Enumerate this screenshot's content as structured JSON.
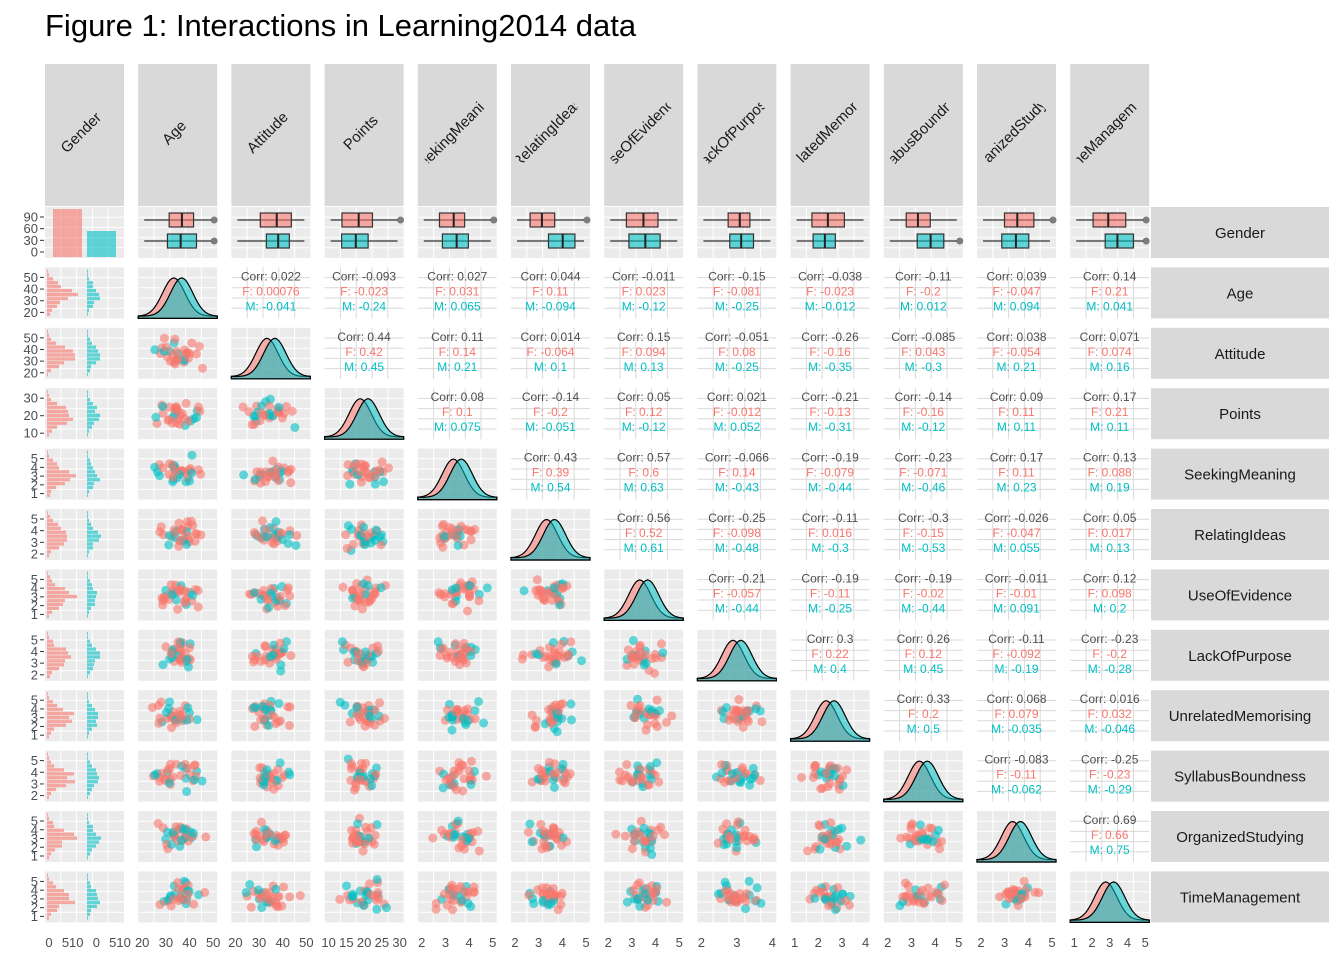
{
  "title": "Figure 1: Interactions in Learning2014 data",
  "variables": [
    "Gender",
    "Age",
    "Attitude",
    "Points",
    "SeekingMeaning",
    "RelatingIdeas",
    "UseOfEvidence",
    "LackOfPurpose",
    "UnrelatedMemorising",
    "SyllabusBoundness",
    "OrganizedStudying",
    "TimeManagement"
  ],
  "colors": {
    "female": "#F8766D",
    "male": "#00BFC4",
    "panel": "#EBEBEB",
    "grid": "#FFFFFF",
    "strip": "#D9D9D9",
    "label": "#4D4D4D",
    "corr_text": "#4D4D4D"
  },
  "y_ticks": [
    [
      "90",
      "60",
      "30",
      "0"
    ],
    [
      "50",
      "40",
      "30",
      "20"
    ],
    [
      "50",
      "40",
      "30",
      "20"
    ],
    [
      "30",
      "20",
      "10"
    ],
    [
      "5",
      "4",
      "3",
      "2",
      "1"
    ],
    [
      "5",
      "4",
      "3",
      "2"
    ],
    [
      "5",
      "4",
      "3",
      "2",
      "1"
    ],
    [
      "5",
      "4",
      "3",
      "2"
    ],
    [
      "5",
      "4",
      "3",
      "2",
      "1"
    ],
    [
      "5",
      "4",
      "3",
      "2"
    ],
    [
      "5",
      "4",
      "3",
      "2",
      "1"
    ],
    [
      "5",
      "4",
      "3",
      "2",
      "1"
    ]
  ],
  "x_ticks": [
    [
      "0",
      "510",
      "0",
      "510"
    ],
    [
      "20",
      "30",
      "40",
      "50"
    ],
    [
      "20",
      "30",
      "40",
      "50"
    ],
    [
      "10",
      "15",
      "20",
      "25",
      "30"
    ],
    [
      "2",
      "3",
      "4",
      "5"
    ],
    [
      "2",
      "3",
      "4",
      "5"
    ],
    [
      "2",
      "3",
      "4",
      "5"
    ],
    [
      "2",
      "3",
      "4"
    ],
    [
      "1",
      "2",
      "3",
      "4"
    ],
    [
      "2",
      "3",
      "4",
      "5"
    ],
    [
      "2",
      "3",
      "4",
      "5"
    ],
    [
      "1",
      "2",
      "3",
      "4",
      "5"
    ]
  ],
  "chart_data": {
    "type": "scatter",
    "title": "Figure 1: Interactions in Learning2014 data",
    "plot_kind": "generalized pairs plot (ggpairs), colored by Gender (F, M)",
    "groups": [
      "F",
      "M"
    ],
    "correlations": [
      {
        "row": "Age",
        "col": "Attitude",
        "corr": "0.022",
        "F": "0.00076",
        "M": "-0.041"
      },
      {
        "row": "Age",
        "col": "Points",
        "corr": "-0.093",
        "F": "-0.023",
        "M": "-0.24"
      },
      {
        "row": "Age",
        "col": "SeekingMeaning",
        "corr": "0.027",
        "F": "0.031",
        "M": "0.065"
      },
      {
        "row": "Age",
        "col": "RelatingIdeas",
        "corr": "0.044",
        "F": "0.11",
        "M": "-0.094"
      },
      {
        "row": "Age",
        "col": "UseOfEvidence",
        "corr": "-0.011",
        "F": "0.023",
        "M": "-0.12"
      },
      {
        "row": "Age",
        "col": "LackOfPurpose",
        "corr": "-0.15",
        "F": "-0.081",
        "M": "-0.25"
      },
      {
        "row": "Age",
        "col": "UnrelatedMemorising",
        "corr": "-0.038",
        "F": "-0.023",
        "M": "-0.012"
      },
      {
        "row": "Age",
        "col": "SyllabusBoundness",
        "corr": "-0.11",
        "F": "-0.2",
        "M": "0.012"
      },
      {
        "row": "Age",
        "col": "OrganizedStudying",
        "corr": "0.039",
        "F": "-0.047",
        "M": "0.094"
      },
      {
        "row": "Age",
        "col": "TimeManagement",
        "corr": "0.14",
        "F": "0.21",
        "M": "0.041"
      },
      {
        "row": "Attitude",
        "col": "Points",
        "corr": "0.44",
        "F": "0.42",
        "M": "0.45"
      },
      {
        "row": "Attitude",
        "col": "SeekingMeaning",
        "corr": "0.11",
        "F": "0.14",
        "M": "0.21"
      },
      {
        "row": "Attitude",
        "col": "RelatingIdeas",
        "corr": "0.014",
        "F": "-0.064",
        "M": "0.1"
      },
      {
        "row": "Attitude",
        "col": "UseOfEvidence",
        "corr": "0.15",
        "F": "0.094",
        "M": "0.13"
      },
      {
        "row": "Attitude",
        "col": "LackOfPurpose",
        "corr": "-0.051",
        "F": "0.08",
        "M": "-0.25"
      },
      {
        "row": "Attitude",
        "col": "UnrelatedMemorising",
        "corr": "-0.26",
        "F": "-0.16",
        "M": "-0.35"
      },
      {
        "row": "Attitude",
        "col": "SyllabusBoundness",
        "corr": "-0.085",
        "F": "0.043",
        "M": "-0.3"
      },
      {
        "row": "Attitude",
        "col": "OrganizedStudying",
        "corr": "0.038",
        "F": "-0.054",
        "M": "0.21"
      },
      {
        "row": "Attitude",
        "col": "TimeManagement",
        "corr": "0.071",
        "F": "0.074",
        "M": "0.16"
      },
      {
        "row": "Points",
        "col": "SeekingMeaning",
        "corr": "0.08",
        "F": "0.1",
        "M": "0.075"
      },
      {
        "row": "Points",
        "col": "RelatingIdeas",
        "corr": "-0.14",
        "F": "-0.2",
        "M": "-0.051"
      },
      {
        "row": "Points",
        "col": "UseOfEvidence",
        "corr": "0.05",
        "F": "0.12",
        "M": "-0.12"
      },
      {
        "row": "Points",
        "col": "LackOfPurpose",
        "corr": "0.021",
        "F": "-0.012",
        "M": "0.052"
      },
      {
        "row": "Points",
        "col": "UnrelatedMemorising",
        "corr": "-0.21",
        "F": "-0.13",
        "M": "-0.31"
      },
      {
        "row": "Points",
        "col": "SyllabusBoundness",
        "corr": "-0.14",
        "F": "-0.16",
        "M": "-0.12"
      },
      {
        "row": "Points",
        "col": "OrganizedStudying",
        "corr": "0.09",
        "F": "0.11",
        "M": "0.11"
      },
      {
        "row": "Points",
        "col": "TimeManagement",
        "corr": "0.17",
        "F": "0.21",
        "M": "0.11"
      },
      {
        "row": "SeekingMeaning",
        "col": "RelatingIdeas",
        "corr": "0.43",
        "F": "0.39",
        "M": "0.54"
      },
      {
        "row": "SeekingMeaning",
        "col": "UseOfEvidence",
        "corr": "0.57",
        "F": "0.6",
        "M": "0.63"
      },
      {
        "row": "SeekingMeaning",
        "col": "LackOfPurpose",
        "corr": "-0.066",
        "F": "0.14",
        "M": "-0.43"
      },
      {
        "row": "SeekingMeaning",
        "col": "UnrelatedMemorising",
        "corr": "-0.19",
        "F": "-0.079",
        "M": "-0.44"
      },
      {
        "row": "SeekingMeaning",
        "col": "SyllabusBoundness",
        "corr": "-0.23",
        "F": "-0.071",
        "M": "-0.46"
      },
      {
        "row": "SeekingMeaning",
        "col": "OrganizedStudying",
        "corr": "0.17",
        "F": "0.11",
        "M": "0.23"
      },
      {
        "row": "SeekingMeaning",
        "col": "TimeManagement",
        "corr": "0.13",
        "F": "0.088",
        "M": "0.19"
      },
      {
        "row": "RelatingIdeas",
        "col": "UseOfEvidence",
        "corr": "0.56",
        "F": "0.52",
        "M": "0.61"
      },
      {
        "row": "RelatingIdeas",
        "col": "LackOfPurpose",
        "corr": "-0.25",
        "F": "-0.098",
        "M": "-0.48"
      },
      {
        "row": "RelatingIdeas",
        "col": "UnrelatedMemorising",
        "corr": "-0.11",
        "F": "0.016",
        "M": "-0.3"
      },
      {
        "row": "RelatingIdeas",
        "col": "SyllabusBoundness",
        "corr": "-0.3",
        "F": "-0.15",
        "M": "-0.53"
      },
      {
        "row": "RelatingIdeas",
        "col": "OrganizedStudying",
        "corr": "-0.026",
        "F": "-0.047",
        "M": "0.055"
      },
      {
        "row": "RelatingIdeas",
        "col": "TimeManagement",
        "corr": "0.05",
        "F": "0.017",
        "M": "0.13"
      },
      {
        "row": "UseOfEvidence",
        "col": "LackOfPurpose",
        "corr": "-0.21",
        "F": "-0.057",
        "M": "-0.44"
      },
      {
        "row": "UseOfEvidence",
        "col": "UnrelatedMemorising",
        "corr": "-0.19",
        "F": "-0.11",
        "M": "-0.25"
      },
      {
        "row": "UseOfEvidence",
        "col": "SyllabusBoundness",
        "corr": "-0.19",
        "F": "-0.02",
        "M": "-0.44"
      },
      {
        "row": "UseOfEvidence",
        "col": "OrganizedStudying",
        "corr": "-0.011",
        "F": "-0.01",
        "M": "0.091"
      },
      {
        "row": "UseOfEvidence",
        "col": "TimeManagement",
        "corr": "0.12",
        "F": "0.098",
        "M": "0.2"
      },
      {
        "row": "LackOfPurpose",
        "col": "UnrelatedMemorising",
        "corr": "0.3",
        "F": "0.22",
        "M": "0.4"
      },
      {
        "row": "LackOfPurpose",
        "col": "SyllabusBoundness",
        "corr": "0.26",
        "F": "0.12",
        "M": "0.45"
      },
      {
        "row": "LackOfPurpose",
        "col": "OrganizedStudying",
        "corr": "-0.11",
        "F": "-0.092",
        "M": "-0.19"
      },
      {
        "row": "LackOfPurpose",
        "col": "TimeManagement",
        "corr": "-0.23",
        "F": "-0.2",
        "M": "-0.28"
      },
      {
        "row": "UnrelatedMemorising",
        "col": "SyllabusBoundness",
        "corr": "0.33",
        "F": "0.2",
        "M": "0.5"
      },
      {
        "row": "UnrelatedMemorising",
        "col": "OrganizedStudying",
        "corr": "0.068",
        "F": "0.079",
        "M": "-0.035"
      },
      {
        "row": "UnrelatedMemorising",
        "col": "TimeManagement",
        "corr": "0.016",
        "F": "0.032",
        "M": "-0.046"
      },
      {
        "row": "SyllabusBoundness",
        "col": "OrganizedStudying",
        "corr": "-0.083",
        "F": "-0.11",
        "M": "-0.062"
      },
      {
        "row": "SyllabusBoundness",
        "col": "TimeManagement",
        "corr": "-0.25",
        "F": "-0.23",
        "M": "-0.29"
      },
      {
        "row": "OrganizedStudying",
        "col": "TimeManagement",
        "corr": "0.69",
        "F": "0.66",
        "M": "0.75"
      }
    ],
    "gender_counts": {
      "F": 110,
      "M": 56
    },
    "ylim_gender_boxplots": [
      0,
      110
    ]
  }
}
